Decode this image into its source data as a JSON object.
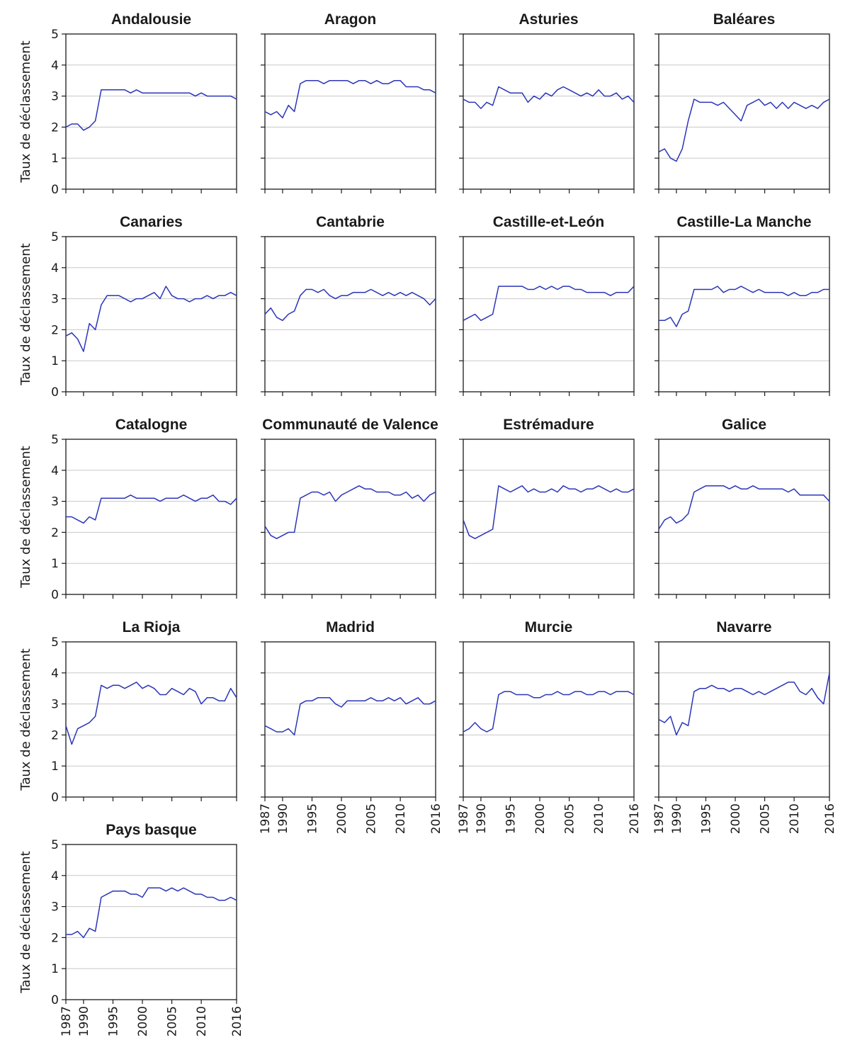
{
  "chart_data": {
    "type": "line",
    "layout": "small-multiples",
    "ylabel": "Taux de déclassement",
    "ylim": [
      0,
      5
    ],
    "yticks": [
      "0",
      "1",
      "2",
      "3",
      "4",
      "5"
    ],
    "xlim": [
      1987,
      2016
    ],
    "xticks": [
      "1987",
      "1990",
      "1995",
      "2000",
      "2005",
      "2010",
      "2016"
    ],
    "grid": "horizontal",
    "line_color": "#2b35b8",
    "regions": [
      {
        "name": "Andalousie",
        "x": [
          1987,
          1988,
          1989,
          1990,
          1991,
          1992,
          1993,
          1994,
          1995,
          1996,
          1997,
          1998,
          1999,
          2000,
          2001,
          2002,
          2003,
          2004,
          2005,
          2006,
          2007,
          2008,
          2009,
          2010,
          2011,
          2012,
          2013,
          2014,
          2015,
          2016
        ],
        "values": [
          2.0,
          2.1,
          2.1,
          1.9,
          2.0,
          2.2,
          3.2,
          3.2,
          3.2,
          3.2,
          3.2,
          3.1,
          3.2,
          3.1,
          3.1,
          3.1,
          3.1,
          3.1,
          3.1,
          3.1,
          3.1,
          3.1,
          3.0,
          3.1,
          3.0,
          3.0,
          3.0,
          3.0,
          3.0,
          2.9
        ]
      },
      {
        "name": "Aragon",
        "x": [
          1987,
          1988,
          1989,
          1990,
          1991,
          1992,
          1993,
          1994,
          1995,
          1996,
          1997,
          1998,
          1999,
          2000,
          2001,
          2002,
          2003,
          2004,
          2005,
          2006,
          2007,
          2008,
          2009,
          2010,
          2011,
          2012,
          2013,
          2014,
          2015,
          2016
        ],
        "values": [
          2.5,
          2.4,
          2.5,
          2.3,
          2.7,
          2.5,
          3.4,
          3.5,
          3.5,
          3.5,
          3.4,
          3.5,
          3.5,
          3.5,
          3.5,
          3.4,
          3.5,
          3.5,
          3.4,
          3.5,
          3.4,
          3.4,
          3.5,
          3.5,
          3.3,
          3.3,
          3.3,
          3.2,
          3.2,
          3.1
        ]
      },
      {
        "name": "Asturies",
        "x": [
          1987,
          1988,
          1989,
          1990,
          1991,
          1992,
          1993,
          1994,
          1995,
          1996,
          1997,
          1998,
          1999,
          2000,
          2001,
          2002,
          2003,
          2004,
          2005,
          2006,
          2007,
          2008,
          2009,
          2010,
          2011,
          2012,
          2013,
          2014,
          2015,
          2016
        ],
        "values": [
          2.9,
          2.8,
          2.8,
          2.6,
          2.8,
          2.7,
          3.3,
          3.2,
          3.1,
          3.1,
          3.1,
          2.8,
          3.0,
          2.9,
          3.1,
          3.0,
          3.2,
          3.3,
          3.2,
          3.1,
          3.0,
          3.1,
          3.0,
          3.2,
          3.0,
          3.0,
          3.1,
          2.9,
          3.0,
          2.8
        ]
      },
      {
        "name": "Baléares",
        "x": [
          1987,
          1988,
          1989,
          1990,
          1991,
          1992,
          1993,
          1994,
          1995,
          1996,
          1997,
          1998,
          1999,
          2000,
          2001,
          2002,
          2003,
          2004,
          2005,
          2006,
          2007,
          2008,
          2009,
          2010,
          2011,
          2012,
          2013,
          2014,
          2015,
          2016
        ],
        "values": [
          1.2,
          1.3,
          1.0,
          0.9,
          1.3,
          2.2,
          2.9,
          2.8,
          2.8,
          2.8,
          2.7,
          2.8,
          2.6,
          2.4,
          2.2,
          2.7,
          2.8,
          2.9,
          2.7,
          2.8,
          2.6,
          2.8,
          2.6,
          2.8,
          2.7,
          2.6,
          2.7,
          2.6,
          2.8,
          2.9
        ]
      },
      {
        "name": "Canaries",
        "x": [
          1987,
          1988,
          1989,
          1990,
          1991,
          1992,
          1993,
          1994,
          1995,
          1996,
          1997,
          1998,
          1999,
          2000,
          2001,
          2002,
          2003,
          2004,
          2005,
          2006,
          2007,
          2008,
          2009,
          2010,
          2011,
          2012,
          2013,
          2014,
          2015,
          2016
        ],
        "values": [
          1.8,
          1.9,
          1.7,
          1.3,
          2.2,
          2.0,
          2.8,
          3.1,
          3.1,
          3.1,
          3.0,
          2.9,
          3.0,
          3.0,
          3.1,
          3.2,
          3.0,
          3.4,
          3.1,
          3.0,
          3.0,
          2.9,
          3.0,
          3.0,
          3.1,
          3.0,
          3.1,
          3.1,
          3.2,
          3.1
        ]
      },
      {
        "name": "Cantabrie",
        "x": [
          1987,
          1988,
          1989,
          1990,
          1991,
          1992,
          1993,
          1994,
          1995,
          1996,
          1997,
          1998,
          1999,
          2000,
          2001,
          2002,
          2003,
          2004,
          2005,
          2006,
          2007,
          2008,
          2009,
          2010,
          2011,
          2012,
          2013,
          2014,
          2015,
          2016
        ],
        "values": [
          2.5,
          2.7,
          2.4,
          2.3,
          2.5,
          2.6,
          3.1,
          3.3,
          3.3,
          3.2,
          3.3,
          3.1,
          3.0,
          3.1,
          3.1,
          3.2,
          3.2,
          3.2,
          3.3,
          3.2,
          3.1,
          3.2,
          3.1,
          3.2,
          3.1,
          3.2,
          3.1,
          3.0,
          2.8,
          3.0
        ]
      },
      {
        "name": "Castille-et-León",
        "x": [
          1987,
          1988,
          1989,
          1990,
          1991,
          1992,
          1993,
          1994,
          1995,
          1996,
          1997,
          1998,
          1999,
          2000,
          2001,
          2002,
          2003,
          2004,
          2005,
          2006,
          2007,
          2008,
          2009,
          2010,
          2011,
          2012,
          2013,
          2014,
          2015,
          2016
        ],
        "values": [
          2.3,
          2.4,
          2.5,
          2.3,
          2.4,
          2.5,
          3.4,
          3.4,
          3.4,
          3.4,
          3.4,
          3.3,
          3.3,
          3.4,
          3.3,
          3.4,
          3.3,
          3.4,
          3.4,
          3.3,
          3.3,
          3.2,
          3.2,
          3.2,
          3.2,
          3.1,
          3.2,
          3.2,
          3.2,
          3.4
        ]
      },
      {
        "name": "Castille-La Manche",
        "x": [
          1987,
          1988,
          1989,
          1990,
          1991,
          1992,
          1993,
          1994,
          1995,
          1996,
          1997,
          1998,
          1999,
          2000,
          2001,
          2002,
          2003,
          2004,
          2005,
          2006,
          2007,
          2008,
          2009,
          2010,
          2011,
          2012,
          2013,
          2014,
          2015,
          2016
        ],
        "values": [
          2.3,
          2.3,
          2.4,
          2.1,
          2.5,
          2.6,
          3.3,
          3.3,
          3.3,
          3.3,
          3.4,
          3.2,
          3.3,
          3.3,
          3.4,
          3.3,
          3.2,
          3.3,
          3.2,
          3.2,
          3.2,
          3.2,
          3.1,
          3.2,
          3.1,
          3.1,
          3.2,
          3.2,
          3.3,
          3.3
        ]
      },
      {
        "name": "Catalogne",
        "x": [
          1987,
          1988,
          1989,
          1990,
          1991,
          1992,
          1993,
          1994,
          1995,
          1996,
          1997,
          1998,
          1999,
          2000,
          2001,
          2002,
          2003,
          2004,
          2005,
          2006,
          2007,
          2008,
          2009,
          2010,
          2011,
          2012,
          2013,
          2014,
          2015,
          2016
        ],
        "values": [
          2.5,
          2.5,
          2.4,
          2.3,
          2.5,
          2.4,
          3.1,
          3.1,
          3.1,
          3.1,
          3.1,
          3.2,
          3.1,
          3.1,
          3.1,
          3.1,
          3.0,
          3.1,
          3.1,
          3.1,
          3.2,
          3.1,
          3.0,
          3.1,
          3.1,
          3.2,
          3.0,
          3.0,
          2.9,
          3.1
        ]
      },
      {
        "name": "Communauté de Valence",
        "x": [
          1987,
          1988,
          1989,
          1990,
          1991,
          1992,
          1993,
          1994,
          1995,
          1996,
          1997,
          1998,
          1999,
          2000,
          2001,
          2002,
          2003,
          2004,
          2005,
          2006,
          2007,
          2008,
          2009,
          2010,
          2011,
          2012,
          2013,
          2014,
          2015,
          2016
        ],
        "values": [
          2.2,
          1.9,
          1.8,
          1.9,
          2.0,
          2.0,
          3.1,
          3.2,
          3.3,
          3.3,
          3.2,
          3.3,
          3.0,
          3.2,
          3.3,
          3.4,
          3.5,
          3.4,
          3.4,
          3.3,
          3.3,
          3.3,
          3.2,
          3.2,
          3.3,
          3.1,
          3.2,
          3.0,
          3.2,
          3.3
        ]
      },
      {
        "name": "Estrémadure",
        "x": [
          1987,
          1988,
          1989,
          1990,
          1991,
          1992,
          1993,
          1994,
          1995,
          1996,
          1997,
          1998,
          1999,
          2000,
          2001,
          2002,
          2003,
          2004,
          2005,
          2006,
          2007,
          2008,
          2009,
          2010,
          2011,
          2012,
          2013,
          2014,
          2015,
          2016
        ],
        "values": [
          2.4,
          1.9,
          1.8,
          1.9,
          2.0,
          2.1,
          3.5,
          3.4,
          3.3,
          3.4,
          3.5,
          3.3,
          3.4,
          3.3,
          3.3,
          3.4,
          3.3,
          3.5,
          3.4,
          3.4,
          3.3,
          3.4,
          3.4,
          3.5,
          3.4,
          3.3,
          3.4,
          3.3,
          3.3,
          3.4
        ]
      },
      {
        "name": "Galice",
        "x": [
          1987,
          1988,
          1989,
          1990,
          1991,
          1992,
          1993,
          1994,
          1995,
          1996,
          1997,
          1998,
          1999,
          2000,
          2001,
          2002,
          2003,
          2004,
          2005,
          2006,
          2007,
          2008,
          2009,
          2010,
          2011,
          2012,
          2013,
          2014,
          2015,
          2016
        ],
        "values": [
          2.1,
          2.4,
          2.5,
          2.3,
          2.4,
          2.6,
          3.3,
          3.4,
          3.5,
          3.5,
          3.5,
          3.5,
          3.4,
          3.5,
          3.4,
          3.4,
          3.5,
          3.4,
          3.4,
          3.4,
          3.4,
          3.4,
          3.3,
          3.4,
          3.2,
          3.2,
          3.2,
          3.2,
          3.2,
          3.0
        ]
      },
      {
        "name": "La Rioja",
        "x": [
          1987,
          1988,
          1989,
          1990,
          1991,
          1992,
          1993,
          1994,
          1995,
          1996,
          1997,
          1998,
          1999,
          2000,
          2001,
          2002,
          2003,
          2004,
          2005,
          2006,
          2007,
          2008,
          2009,
          2010,
          2011,
          2012,
          2013,
          2014,
          2015,
          2016
        ],
        "values": [
          2.3,
          1.7,
          2.2,
          2.3,
          2.4,
          2.6,
          3.6,
          3.5,
          3.6,
          3.6,
          3.5,
          3.6,
          3.7,
          3.5,
          3.6,
          3.5,
          3.3,
          3.3,
          3.5,
          3.4,
          3.3,
          3.5,
          3.4,
          3.0,
          3.2,
          3.2,
          3.1,
          3.1,
          3.5,
          3.2
        ]
      },
      {
        "name": "Madrid",
        "x": [
          1987,
          1988,
          1989,
          1990,
          1991,
          1992,
          1993,
          1994,
          1995,
          1996,
          1997,
          1998,
          1999,
          2000,
          2001,
          2002,
          2003,
          2004,
          2005,
          2006,
          2007,
          2008,
          2009,
          2010,
          2011,
          2012,
          2013,
          2014,
          2015,
          2016
        ],
        "values": [
          2.3,
          2.2,
          2.1,
          2.1,
          2.2,
          2.0,
          3.0,
          3.1,
          3.1,
          3.2,
          3.2,
          3.2,
          3.0,
          2.9,
          3.1,
          3.1,
          3.1,
          3.1,
          3.2,
          3.1,
          3.1,
          3.2,
          3.1,
          3.2,
          3.0,
          3.1,
          3.2,
          3.0,
          3.0,
          3.1
        ]
      },
      {
        "name": "Murcie",
        "x": [
          1987,
          1988,
          1989,
          1990,
          1991,
          1992,
          1993,
          1994,
          1995,
          1996,
          1997,
          1998,
          1999,
          2000,
          2001,
          2002,
          2003,
          2004,
          2005,
          2006,
          2007,
          2008,
          2009,
          2010,
          2011,
          2012,
          2013,
          2014,
          2015,
          2016
        ],
        "values": [
          2.1,
          2.2,
          2.4,
          2.2,
          2.1,
          2.2,
          3.3,
          3.4,
          3.4,
          3.3,
          3.3,
          3.3,
          3.2,
          3.2,
          3.3,
          3.3,
          3.4,
          3.3,
          3.3,
          3.4,
          3.4,
          3.3,
          3.3,
          3.4,
          3.4,
          3.3,
          3.4,
          3.4,
          3.4,
          3.3
        ]
      },
      {
        "name": "Navarre",
        "x": [
          1987,
          1988,
          1989,
          1990,
          1991,
          1992,
          1993,
          1994,
          1995,
          1996,
          1997,
          1998,
          1999,
          2000,
          2001,
          2002,
          2003,
          2004,
          2005,
          2006,
          2007,
          2008,
          2009,
          2010,
          2011,
          2012,
          2013,
          2014,
          2015,
          2016
        ],
        "values": [
          2.5,
          2.4,
          2.6,
          2.0,
          2.4,
          2.3,
          3.4,
          3.5,
          3.5,
          3.6,
          3.5,
          3.5,
          3.4,
          3.5,
          3.5,
          3.4,
          3.3,
          3.4,
          3.3,
          3.4,
          3.5,
          3.6,
          3.7,
          3.7,
          3.4,
          3.3,
          3.5,
          3.2,
          3.0,
          4.0
        ]
      },
      {
        "name": "Pays basque",
        "x": [
          1987,
          1988,
          1989,
          1990,
          1991,
          1992,
          1993,
          1994,
          1995,
          1996,
          1997,
          1998,
          1999,
          2000,
          2001,
          2002,
          2003,
          2004,
          2005,
          2006,
          2007,
          2008,
          2009,
          2010,
          2011,
          2012,
          2013,
          2014,
          2015,
          2016
        ],
        "values": [
          2.1,
          2.1,
          2.2,
          2.0,
          2.3,
          2.2,
          3.3,
          3.4,
          3.5,
          3.5,
          3.5,
          3.4,
          3.4,
          3.3,
          3.6,
          3.6,
          3.6,
          3.5,
          3.6,
          3.5,
          3.6,
          3.5,
          3.4,
          3.4,
          3.3,
          3.3,
          3.2,
          3.2,
          3.3,
          3.2
        ]
      }
    ]
  }
}
